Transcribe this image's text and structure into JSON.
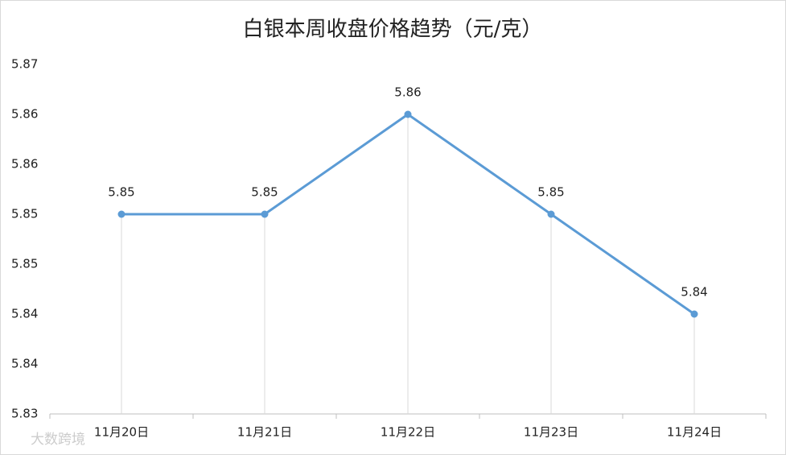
{
  "chart_data": {
    "type": "line",
    "title": "白银本周收盘价格趋势（元/克）",
    "categories": [
      "11月20日",
      "11月21日",
      "11月22日",
      "11月23日",
      "11月24日"
    ],
    "series": [
      {
        "name": "白银",
        "color": "#5b9bd5",
        "values": [
          5.85,
          5.85,
          5.86,
          5.85,
          5.84
        ]
      }
    ],
    "ylim": [
      5.83,
      5.865
    ],
    "yticks": [
      5.83,
      {
        "value": 5.835,
        "label": "5.84"
      },
      5.84,
      {
        "value": 5.845,
        "label": "5.85"
      },
      5.85,
      {
        "value": 5.855,
        "label": "5.86"
      },
      5.86,
      {
        "value": 5.865,
        "label": "5.87"
      }
    ],
    "drop_lines": true,
    "watermark": "大数跨境"
  }
}
